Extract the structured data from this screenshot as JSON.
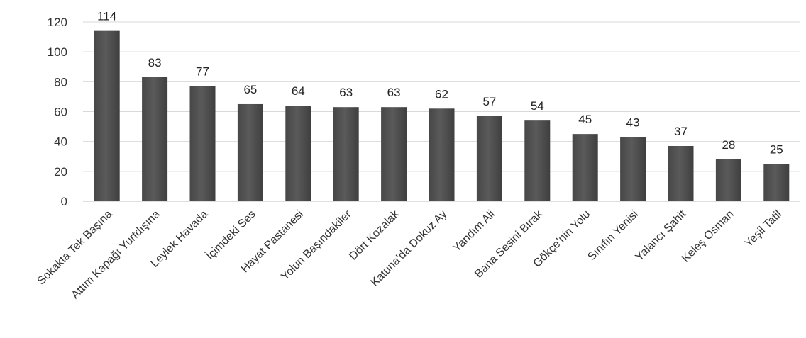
{
  "chart_data": {
    "type": "bar",
    "categories": [
      "Sokakta Tek Başına",
      "Attım Kapağı Yurtdışına",
      "Leylek Havada",
      "İçimdeki Ses",
      "Hayat Pastanesi",
      "Yolun Başındakiler",
      "Dört Kozalak",
      "Katuna’da Dokuz Ay",
      "Yandım Ali",
      "Bana Sesini Bırak",
      "Gökçe’nin Yolu",
      "Sınıfın Yenisi",
      "Yalancı Şahit",
      "Keleş Osman",
      "Yeşil Tatil"
    ],
    "values": [
      114,
      83,
      77,
      65,
      64,
      63,
      63,
      62,
      57,
      54,
      45,
      43,
      37,
      28,
      25
    ],
    "ylim": [
      0,
      120
    ],
    "yticks": [
      "0",
      "20",
      "40",
      "60",
      "80",
      "100",
      "120"
    ],
    "grid": true,
    "data_labels": true,
    "bar_color": "#5a5a5a"
  }
}
